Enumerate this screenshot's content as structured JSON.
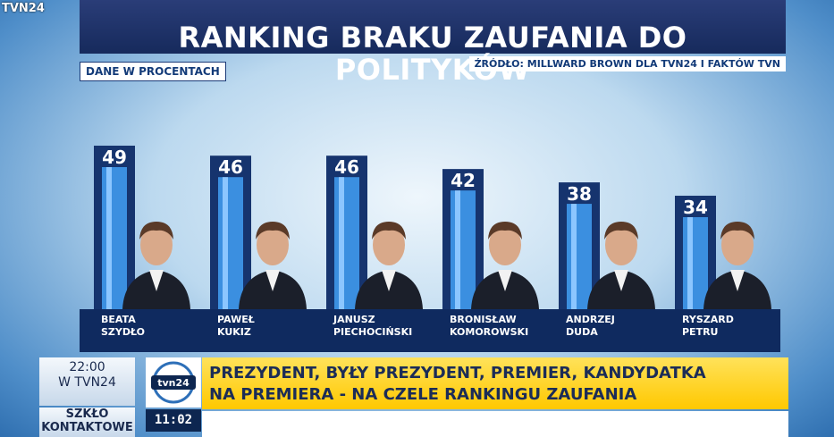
{
  "channel_logo": "TVN24",
  "title": "RANKING BRAKU ZAUFANIA DO POLITYKÓW",
  "subtitle": "DANE W PROCENTACH",
  "source": "ŹRÓDŁO: MILLWARD BROWN DLA TVN24 I FAKTÓW TVN",
  "chart_data": {
    "type": "bar",
    "title": "RANKING BRAKU ZAUFANIA DO POLITYKÓW",
    "subtitle": "DANE W PROCENTACH",
    "categories": [
      "BEATA\nSZYDŁO",
      "PAWEŁ\nKUKIZ",
      "JANUSZ\nPIECHOCIŃSKI",
      "BRONISŁAW\nKOMOROWSKI",
      "ANDRZEJ\nDUDA",
      "RYSZARD\nPETRU"
    ],
    "values": [
      49,
      46,
      46,
      42,
      38,
      34
    ],
    "value_labels": [
      "49",
      "46",
      "46",
      "42",
      "38",
      "34"
    ],
    "ylim": [
      0,
      49
    ],
    "grid": false,
    "bar_color": "#3b8fe0"
  },
  "ticker": {
    "time_line1": "22:00",
    "time_line2": "W TVN24",
    "show_line1": "SZKŁO",
    "show_line2": "KONTAKTOWE",
    "logo_text": "tvn24",
    "clock": "11:02",
    "headline_line1": "PREZYDENT, BYŁY PREZYDENT, PREMIER, KANDYDATKA",
    "headline_line2": "NA PREMIERA - NA CZELE RANKINGU ZAUFANIA"
  }
}
